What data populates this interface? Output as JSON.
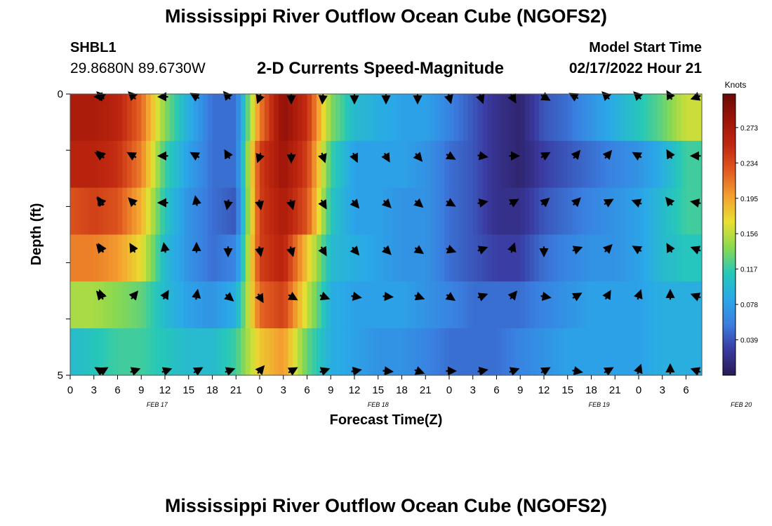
{
  "titles": {
    "top": "Mississippi River Outflow Ocean Cube (NGOFS2)",
    "bottom": "Mississippi River Outflow Ocean Cube (NGOFS2)"
  },
  "station": {
    "id": "SHBL1",
    "coords": "29.8680N  89.6730W"
  },
  "product": "2-D Currents Speed-Magnitude",
  "model_start": {
    "label": "Model Start Time",
    "value": "02/17/2022 Hour 21"
  },
  "colors": {
    "colormap": [
      "#2a1a55",
      "#3a3aa0",
      "#3a7fe0",
      "#2aa8e8",
      "#26c8b8",
      "#8ad850",
      "#e8e030",
      "#f4a030",
      "#e05a20",
      "#c02810",
      "#9c1408",
      "#6a0a06"
    ],
    "arrow": "#000000"
  },
  "chart_data": {
    "type": "heatmap",
    "xlabel": "Forecast Time(Z)",
    "ylabel": "Depth (ft)",
    "x_ticks": [
      "0",
      "3",
      "6",
      "9",
      "12",
      "15",
      "18",
      "21",
      "0",
      "3",
      "6",
      "9",
      "12",
      "15",
      "18",
      "21",
      "0",
      "3",
      "6",
      "9",
      "12",
      "15",
      "18",
      "21",
      "0",
      "3",
      "6"
    ],
    "date_labels": [
      {
        "label": "FEB 17",
        "tick_index": 3.67
      },
      {
        "label": "FEB 18",
        "tick_index": 13.0
      },
      {
        "label": "FEB 19",
        "tick_index": 22.33
      },
      {
        "label": "FEB 20",
        "tick_index": 28.33
      }
    ],
    "y_ticks": [
      "0",
      "5"
    ],
    "ylim": [
      0,
      5
    ],
    "colorbar": {
      "label": "Knots",
      "ticks": [
        "0.273",
        "0.234",
        "0.195",
        "0.156",
        "0.117",
        "0.078",
        "0.039"
      ],
      "vmin": 0.0,
      "vmax": 0.31
    },
    "x_hours": [
      0,
      3,
      6,
      9,
      12,
      15,
      18,
      21,
      24,
      27,
      30,
      33,
      36,
      39,
      42,
      45,
      48,
      51,
      54,
      57,
      60,
      63,
      66,
      69,
      72,
      75,
      78
    ],
    "depth_layers": [
      0,
      1,
      2,
      3,
      4,
      5
    ],
    "speed_knots": [
      [
        0.27,
        0.27,
        0.26,
        0.22,
        0.14,
        0.09,
        0.05,
        0.05,
        0.21,
        0.29,
        0.25,
        0.14,
        0.1,
        0.09,
        0.08,
        0.08,
        0.06,
        0.04,
        0.02,
        0.01,
        0.04,
        0.05,
        0.07,
        0.09,
        0.11,
        0.13,
        0.16
      ],
      [
        0.26,
        0.26,
        0.25,
        0.21,
        0.12,
        0.08,
        0.05,
        0.05,
        0.24,
        0.28,
        0.24,
        0.12,
        0.08,
        0.08,
        0.08,
        0.07,
        0.05,
        0.04,
        0.02,
        0.01,
        0.03,
        0.04,
        0.05,
        0.06,
        0.07,
        0.09,
        0.12
      ],
      [
        0.23,
        0.24,
        0.23,
        0.19,
        0.11,
        0.07,
        0.05,
        0.04,
        0.24,
        0.27,
        0.23,
        0.11,
        0.08,
        0.08,
        0.07,
        0.07,
        0.05,
        0.04,
        0.02,
        0.02,
        0.04,
        0.05,
        0.06,
        0.07,
        0.08,
        0.1,
        0.12
      ],
      [
        0.21,
        0.21,
        0.2,
        0.17,
        0.1,
        0.07,
        0.05,
        0.06,
        0.24,
        0.26,
        0.18,
        0.1,
        0.09,
        0.08,
        0.07,
        0.07,
        0.05,
        0.04,
        0.03,
        0.03,
        0.05,
        0.06,
        0.07,
        0.07,
        0.08,
        0.1,
        0.11
      ],
      [
        0.15,
        0.15,
        0.14,
        0.13,
        0.1,
        0.08,
        0.07,
        0.09,
        0.22,
        0.24,
        0.16,
        0.09,
        0.08,
        0.08,
        0.08,
        0.07,
        0.06,
        0.05,
        0.05,
        0.05,
        0.06,
        0.07,
        0.08,
        0.08,
        0.08,
        0.09,
        0.09
      ],
      [
        0.1,
        0.11,
        0.12,
        0.12,
        0.11,
        0.1,
        0.1,
        0.12,
        0.18,
        0.2,
        0.13,
        0.09,
        0.08,
        0.07,
        0.07,
        0.06,
        0.05,
        0.05,
        0.05,
        0.06,
        0.07,
        0.08,
        0.08,
        0.08,
        0.08,
        0.09,
        0.09
      ]
    ],
    "arrow_hours": [
      0,
      4,
      8,
      12,
      16,
      20,
      24,
      28,
      32,
      36,
      40,
      44,
      48,
      52,
      56,
      60,
      64,
      68,
      72,
      76,
      80
    ],
    "direction_deg": [
      [
        270,
        315,
        315,
        270,
        300,
        320,
        200,
        180,
        185,
        180,
        180,
        180,
        165,
        160,
        150,
        120,
        300,
        315,
        315,
        330,
        250
      ],
      [
        300,
        315,
        300,
        270,
        300,
        330,
        200,
        180,
        160,
        155,
        150,
        140,
        120,
        100,
        90,
        60,
        40,
        40,
        300,
        330,
        270
      ],
      [
        330,
        315,
        315,
        270,
        350,
        190,
        170,
        165,
        150,
        140,
        135,
        130,
        120,
        80,
        60,
        50,
        45,
        60,
        290,
        320,
        280
      ],
      [
        320,
        330,
        330,
        350,
        0,
        180,
        170,
        165,
        150,
        140,
        135,
        125,
        110,
        70,
        20,
        180,
        70,
        45,
        300,
        330,
        290
      ],
      [
        320,
        340,
        40,
        30,
        10,
        130,
        150,
        120,
        110,
        100,
        95,
        110,
        125,
        70,
        40,
        100,
        60,
        30,
        20,
        0,
        290
      ],
      [
        300,
        60,
        70,
        70,
        60,
        70,
        40,
        60,
        70,
        80,
        95,
        110,
        90,
        80,
        70,
        60,
        100,
        60,
        20,
        0,
        290
      ]
    ]
  }
}
